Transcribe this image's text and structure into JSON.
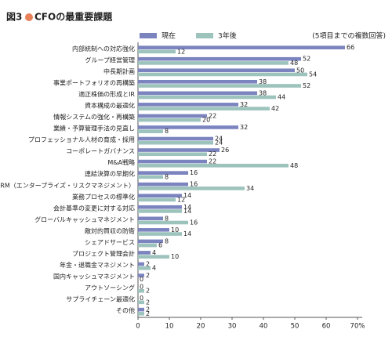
{
  "chart_data": {
    "type": "grouped-hbar",
    "figure_label": "図3",
    "title": "CFOの最重要課題",
    "note": "(5項目までの複数回答)",
    "categories": [
      "内部統制への対応強化",
      "グループ経営管理",
      "中長期計画",
      "事業ポートフォリオの再構築",
      "適正株価の形成とIR",
      "資本構成の最適化",
      "情報システムの強化・再構築",
      "業績・予算管理手法の見直し",
      "プロフェッショナル人材の育成・採用",
      "コーポレートガバナンス",
      "M&A戦略",
      "連結決算の早期化",
      "ERM（エンタープライズ・リスクマネジメント）",
      "業務プロセスの標準化",
      "会計基準の変更に対する対応",
      "グローバルキャッシュマネジメント",
      "敵対的買収の防衛",
      "シェアドサービス",
      "プロジェクト管理会計",
      "年金・退職金マネジメント",
      "国内キャッシュマネジメント",
      "アウトソーシング",
      "サプライチェーン最適化",
      "その他"
    ],
    "series": [
      {
        "name": "現在",
        "color": "#7b84bf",
        "values": [
          66,
          52,
          50,
          38,
          38,
          32,
          22,
          32,
          24,
          26,
          22,
          16,
          16,
          14,
          14,
          8,
          10,
          8,
          4,
          2,
          2,
          0,
          0,
          2
        ]
      },
      {
        "name": "3年後",
        "color": "#9dc3bd",
        "values": [
          12,
          48,
          54,
          52,
          44,
          42,
          20,
          8,
          24,
          22,
          48,
          8,
          34,
          12,
          14,
          16,
          14,
          6,
          10,
          4,
          0,
          2,
          2,
          2
        ]
      }
    ],
    "xlim": [
      0,
      70
    ],
    "xticks": [
      0,
      10,
      20,
      30,
      40,
      50,
      60,
      {
        "value": 70,
        "label": "70%"
      }
    ],
    "grid": false
  }
}
